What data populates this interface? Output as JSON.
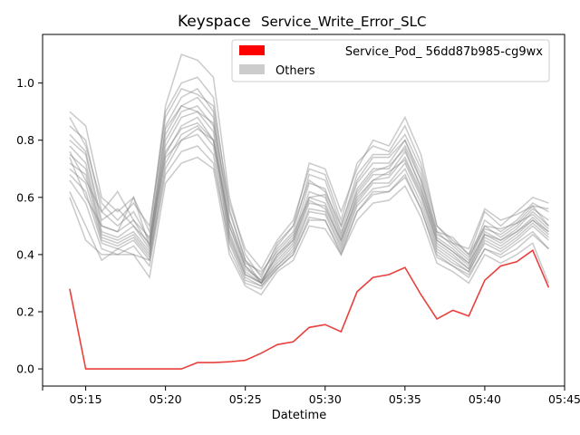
{
  "chart_data": {
    "type": "line",
    "title_main": "Keyspace",
    "title_sub": "Service_Write_Error_SLC",
    "xlabel": "Datetime",
    "ylabel": "",
    "x_ticks": [
      "05:15",
      "05:20",
      "05:25",
      "05:30",
      "05:35",
      "05:40",
      "05:45"
    ],
    "y_ticks": [
      "0.0",
      "0.2",
      "0.4",
      "0.6",
      "0.8",
      "1.0"
    ],
    "xlim": [
      "05:12.3",
      "05:45"
    ],
    "ylim": [
      -0.06,
      1.17
    ],
    "x": [
      "05:14",
      "05:15",
      "05:16",
      "05:17",
      "05:18",
      "05:19",
      "05:20",
      "05:21",
      "05:22",
      "05:23",
      "05:24",
      "05:25",
      "05:26",
      "05:27",
      "05:28",
      "05:29",
      "05:30",
      "05:31",
      "05:32",
      "05:33",
      "05:34",
      "05:35",
      "05:36",
      "05:37",
      "05:38",
      "05:39",
      "05:40",
      "05:41",
      "05:42",
      "05:43",
      "05:44"
    ],
    "grid": false,
    "legend_position": "top-right",
    "legend": [
      {
        "label": "Service_Pod_ 56dd87b985-cg9wx",
        "color": "#ff0000"
      },
      {
        "label": "Others",
        "color": "#cccccc"
      }
    ],
    "highlight_series": {
      "name": "Service_Pod_ 56dd87b985-cg9wx",
      "color": "#e8403c",
      "values": [
        0.28,
        0.0,
        0.0,
        0.0,
        0.0,
        0.0,
        0.0,
        0.0,
        0.022,
        0.022,
        0.025,
        0.03,
        0.055,
        0.085,
        0.095,
        0.145,
        0.155,
        0.13,
        0.27,
        0.32,
        0.33,
        0.355,
        0.26,
        0.175,
        0.205,
        0.185,
        0.31,
        0.36,
        0.375,
        0.415,
        0.285
      ]
    },
    "others_color": "#808080",
    "others_series": [
      {
        "values": [
          0.9,
          0.85,
          0.6,
          0.55,
          0.6,
          0.48,
          0.92,
          1.1,
          1.08,
          1.02,
          0.6,
          0.4,
          0.32,
          0.44,
          0.5,
          0.72,
          0.7,
          0.55,
          0.7,
          0.8,
          0.78,
          0.88,
          0.75,
          0.5,
          0.45,
          0.4,
          0.55,
          0.5,
          0.55,
          0.6,
          0.58
        ]
      },
      {
        "values": [
          0.85,
          0.8,
          0.55,
          0.5,
          0.55,
          0.45,
          0.9,
          1.0,
          1.02,
          0.95,
          0.55,
          0.38,
          0.3,
          0.42,
          0.48,
          0.68,
          0.66,
          0.5,
          0.68,
          0.75,
          0.75,
          0.82,
          0.7,
          0.48,
          0.43,
          0.38,
          0.52,
          0.48,
          0.52,
          0.58,
          0.55
        ]
      },
      {
        "values": [
          0.8,
          0.75,
          0.5,
          0.48,
          0.52,
          0.43,
          0.85,
          0.95,
          0.98,
          0.9,
          0.52,
          0.36,
          0.3,
          0.4,
          0.46,
          0.65,
          0.63,
          0.48,
          0.65,
          0.72,
          0.72,
          0.8,
          0.68,
          0.46,
          0.42,
          0.37,
          0.5,
          0.46,
          0.5,
          0.56,
          0.52
        ]
      },
      {
        "values": [
          0.78,
          0.72,
          0.48,
          0.46,
          0.5,
          0.42,
          0.82,
          0.92,
          0.95,
          0.88,
          0.5,
          0.35,
          0.31,
          0.39,
          0.45,
          0.62,
          0.6,
          0.46,
          0.63,
          0.7,
          0.7,
          0.78,
          0.66,
          0.45,
          0.41,
          0.36,
          0.48,
          0.45,
          0.49,
          0.55,
          0.5
        ]
      },
      {
        "values": [
          0.75,
          0.7,
          0.47,
          0.45,
          0.48,
          0.41,
          0.8,
          0.9,
          0.92,
          0.85,
          0.48,
          0.34,
          0.3,
          0.38,
          0.44,
          0.6,
          0.58,
          0.45,
          0.61,
          0.68,
          0.68,
          0.76,
          0.64,
          0.44,
          0.4,
          0.35,
          0.47,
          0.44,
          0.48,
          0.53,
          0.48
        ]
      },
      {
        "values": [
          0.72,
          0.68,
          0.46,
          0.44,
          0.47,
          0.4,
          0.78,
          0.88,
          0.9,
          0.83,
          0.47,
          0.33,
          0.3,
          0.37,
          0.43,
          0.58,
          0.57,
          0.44,
          0.6,
          0.66,
          0.67,
          0.74,
          0.62,
          0.43,
          0.39,
          0.35,
          0.46,
          0.43,
          0.47,
          0.52,
          0.47
        ]
      },
      {
        "values": [
          0.7,
          0.65,
          0.45,
          0.43,
          0.46,
          0.39,
          0.75,
          0.85,
          0.88,
          0.8,
          0.46,
          0.33,
          0.3,
          0.36,
          0.42,
          0.56,
          0.55,
          0.43,
          0.58,
          0.65,
          0.65,
          0.72,
          0.6,
          0.42,
          0.38,
          0.34,
          0.45,
          0.42,
          0.46,
          0.51,
          0.46
        ]
      },
      {
        "values": [
          0.68,
          0.62,
          0.44,
          0.42,
          0.45,
          0.38,
          0.72,
          0.82,
          0.85,
          0.78,
          0.45,
          0.32,
          0.29,
          0.36,
          0.41,
          0.55,
          0.54,
          0.42,
          0.57,
          0.63,
          0.64,
          0.7,
          0.58,
          0.41,
          0.37,
          0.34,
          0.44,
          0.41,
          0.45,
          0.5,
          0.45
        ]
      },
      {
        "values": [
          0.6,
          0.45,
          0.4,
          0.4,
          0.4,
          0.38,
          0.7,
          0.8,
          0.82,
          0.75,
          0.42,
          0.3,
          0.28,
          0.35,
          0.4,
          0.52,
          0.52,
          0.4,
          0.55,
          0.62,
          0.62,
          0.68,
          0.56,
          0.4,
          0.36,
          0.33,
          0.42,
          0.4,
          0.44,
          0.48,
          0.42
        ]
      },
      {
        "values": [
          0.88,
          0.78,
          0.58,
          0.52,
          0.58,
          0.5,
          0.88,
          0.98,
          0.96,
          0.92,
          0.58,
          0.42,
          0.35,
          0.45,
          0.52,
          0.7,
          0.68,
          0.52,
          0.72,
          0.78,
          0.76,
          0.85,
          0.72,
          0.5,
          0.44,
          0.42,
          0.56,
          0.52,
          0.54,
          0.57,
          0.56
        ]
      },
      {
        "values": [
          0.82,
          0.76,
          0.52,
          0.56,
          0.5,
          0.44,
          0.84,
          0.92,
          0.9,
          0.86,
          0.56,
          0.38,
          0.33,
          0.43,
          0.5,
          0.66,
          0.62,
          0.5,
          0.66,
          0.74,
          0.74,
          0.8,
          0.66,
          0.48,
          0.46,
          0.4,
          0.5,
          0.49,
          0.51,
          0.57,
          0.5
        ]
      },
      {
        "values": [
          0.76,
          0.66,
          0.55,
          0.62,
          0.52,
          0.46,
          0.76,
          0.84,
          0.86,
          0.8,
          0.52,
          0.37,
          0.34,
          0.41,
          0.47,
          0.6,
          0.61,
          0.47,
          0.62,
          0.69,
          0.71,
          0.77,
          0.63,
          0.47,
          0.44,
          0.39,
          0.49,
          0.47,
          0.51,
          0.54,
          0.49
        ]
      },
      {
        "values": [
          0.74,
          0.6,
          0.5,
          0.48,
          0.6,
          0.43,
          0.74,
          0.8,
          0.84,
          0.8,
          0.5,
          0.36,
          0.31,
          0.4,
          0.45,
          0.59,
          0.56,
          0.45,
          0.59,
          0.66,
          0.69,
          0.73,
          0.61,
          0.45,
          0.41,
          0.37,
          0.47,
          0.45,
          0.48,
          0.52,
          0.48
        ]
      },
      {
        "values": [
          0.66,
          0.58,
          0.42,
          0.4,
          0.43,
          0.36,
          0.68,
          0.76,
          0.78,
          0.72,
          0.44,
          0.31,
          0.29,
          0.35,
          0.4,
          0.53,
          0.52,
          0.41,
          0.55,
          0.61,
          0.62,
          0.67,
          0.56,
          0.39,
          0.36,
          0.32,
          0.42,
          0.39,
          0.42,
          0.47,
          0.42
        ]
      },
      {
        "values": [
          0.62,
          0.5,
          0.38,
          0.42,
          0.4,
          0.32,
          0.65,
          0.72,
          0.74,
          0.7,
          0.4,
          0.29,
          0.26,
          0.34,
          0.38,
          0.5,
          0.49,
          0.4,
          0.52,
          0.58,
          0.59,
          0.64,
          0.53,
          0.37,
          0.34,
          0.3,
          0.4,
          0.37,
          0.4,
          0.44,
          0.3
        ]
      }
    ]
  }
}
